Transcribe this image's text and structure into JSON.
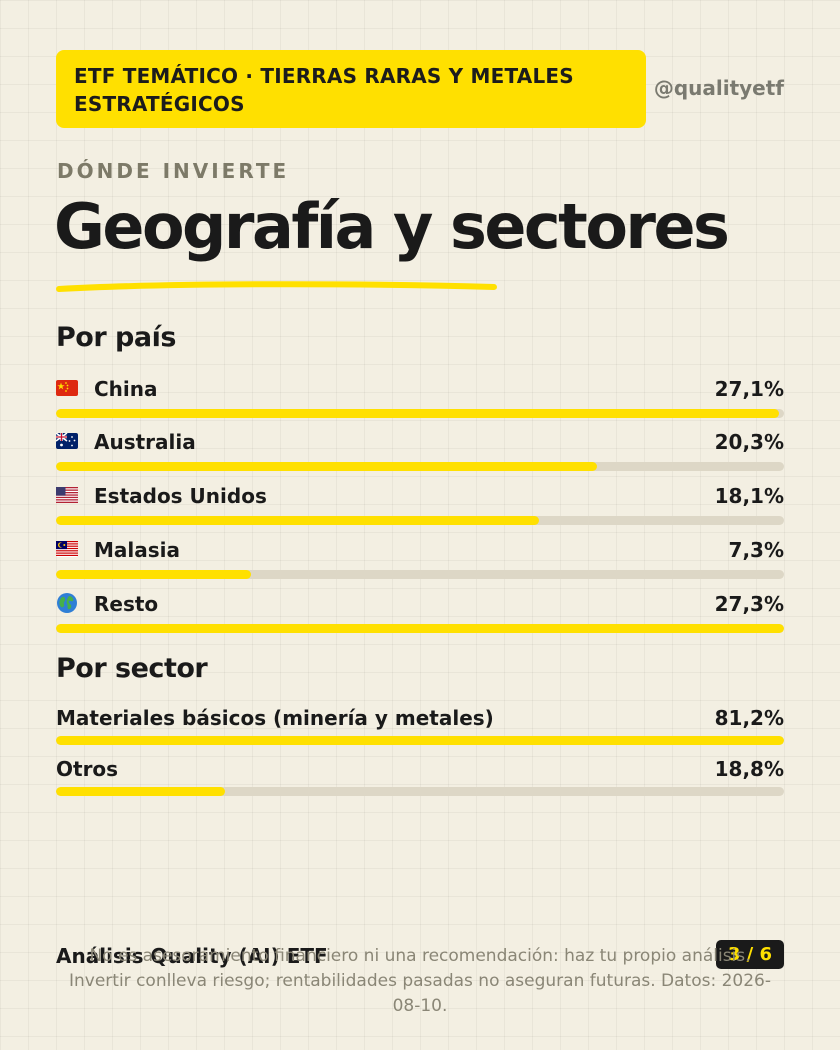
{
  "header": {
    "badge_text": "ETF TEMÁTICO · TIERRAS RARAS Y METALES ESTRATÉGICOS",
    "handle": "@qualityetf"
  },
  "page": {
    "kicker": "DÓNDE INVIERTE",
    "title": "Geografía y sectores"
  },
  "country_section": {
    "title": "Por país",
    "items": [
      {
        "label": "China",
        "value": "27,1%",
        "share": 27.1,
        "flag_icon": "china-flag-icon"
      },
      {
        "label": "Australia",
        "value": "20,3%",
        "share": 20.3,
        "flag_icon": "australia-flag-icon"
      },
      {
        "label": "Estados Unidos",
        "value": "18,1%",
        "share": 18.1,
        "flag_icon": "usa-flag-icon"
      },
      {
        "label": "Malasia",
        "value": "7,3%",
        "share": 7.3,
        "flag_icon": "malaysia-flag-icon"
      },
      {
        "label": "Resto",
        "value": "27,3%",
        "share": 27.3,
        "flag_icon": "globe-icon"
      }
    ],
    "bar_full_scale": 27.3
  },
  "sector_section": {
    "title": "Por sector",
    "items": [
      {
        "label": "Materiales básicos (minería y metales)",
        "value": "81,2%",
        "share": 81.2
      },
      {
        "label": "Otros",
        "value": "18,8%",
        "share": 18.8
      }
    ],
    "bar_full_scale": 81.2
  },
  "footer": {
    "brand": "Análisis Quality (AI) ETF",
    "pager": "3 / 6",
    "disclaimer": "No es asesoramiento financiero ni una recomendación: haz tu propio análisis. Invertir conlleva riesgo; rentabilidades pasadas no aseguran futuras. Datos: 2026-08-10."
  },
  "colors": {
    "accent": "#ffe000",
    "background": "#f3efe2",
    "track": "#ddd7c6",
    "text": "#1a1a1a"
  }
}
